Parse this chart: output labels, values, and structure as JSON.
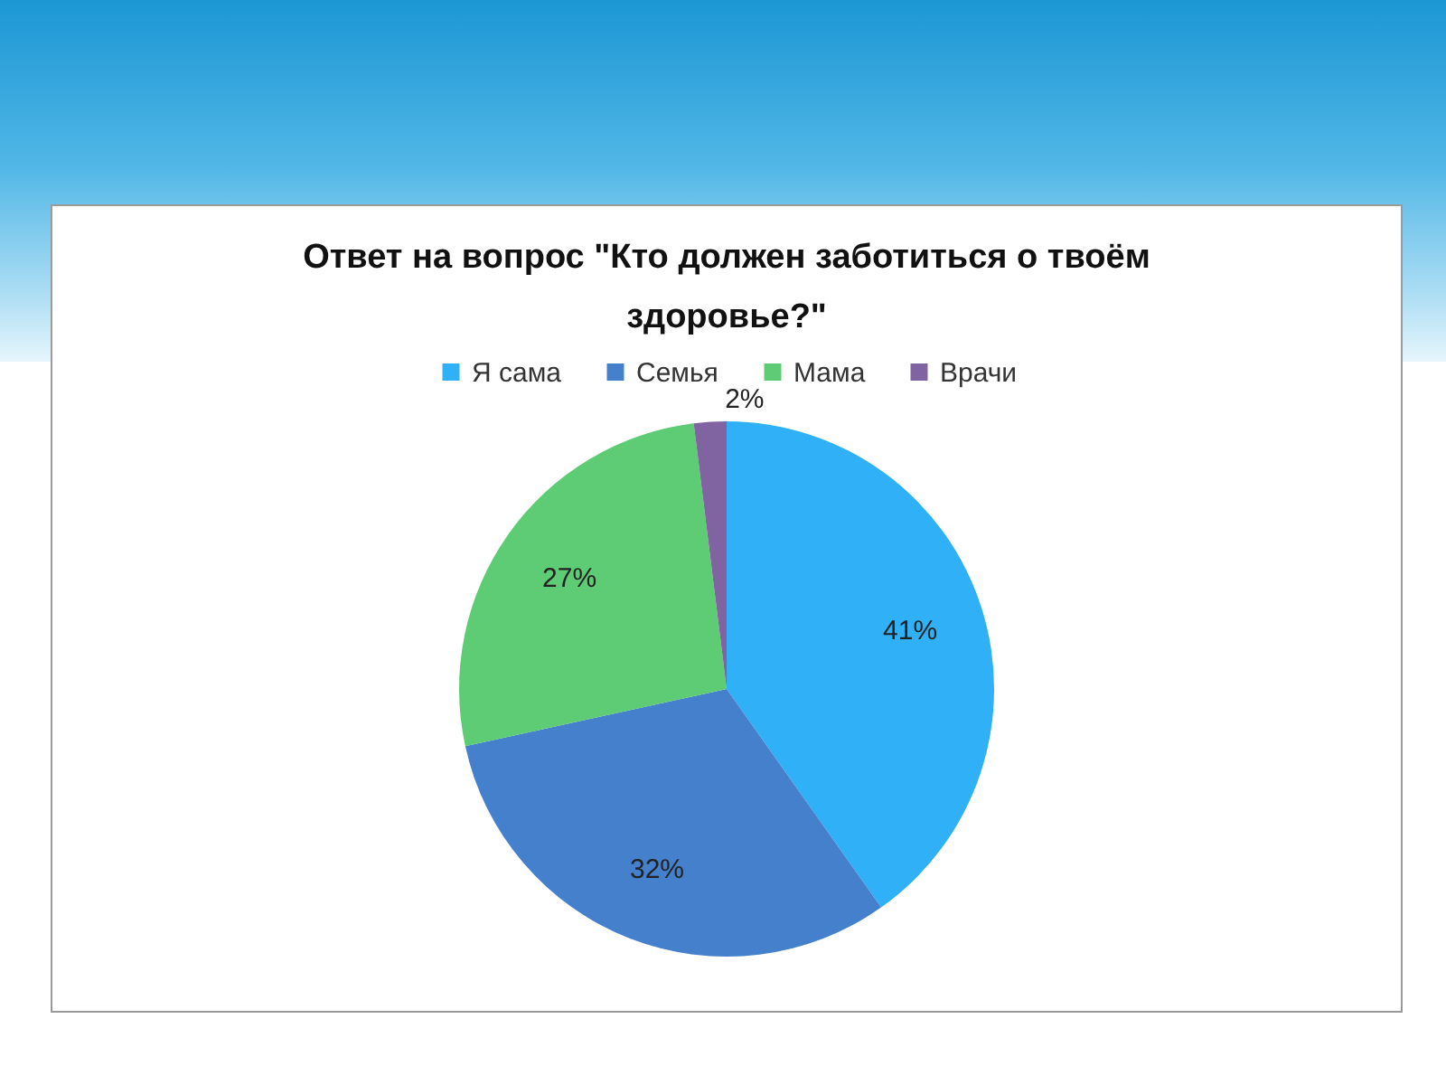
{
  "chart_data": {
    "type": "pie",
    "title": "Ответ на вопрос \"Кто должен заботиться о твоём здоровье?\"",
    "categories": [
      "Я сама",
      "Семья",
      "Мама",
      "Врачи"
    ],
    "values": [
      41,
      32,
      27,
      2
    ],
    "colors": [
      "#30b1f7",
      "#4480cc",
      "#5ecb75",
      "#8064a2"
    ],
    "value_labels": [
      "41%",
      "32%",
      "27%",
      "2%"
    ],
    "legend": "top"
  }
}
